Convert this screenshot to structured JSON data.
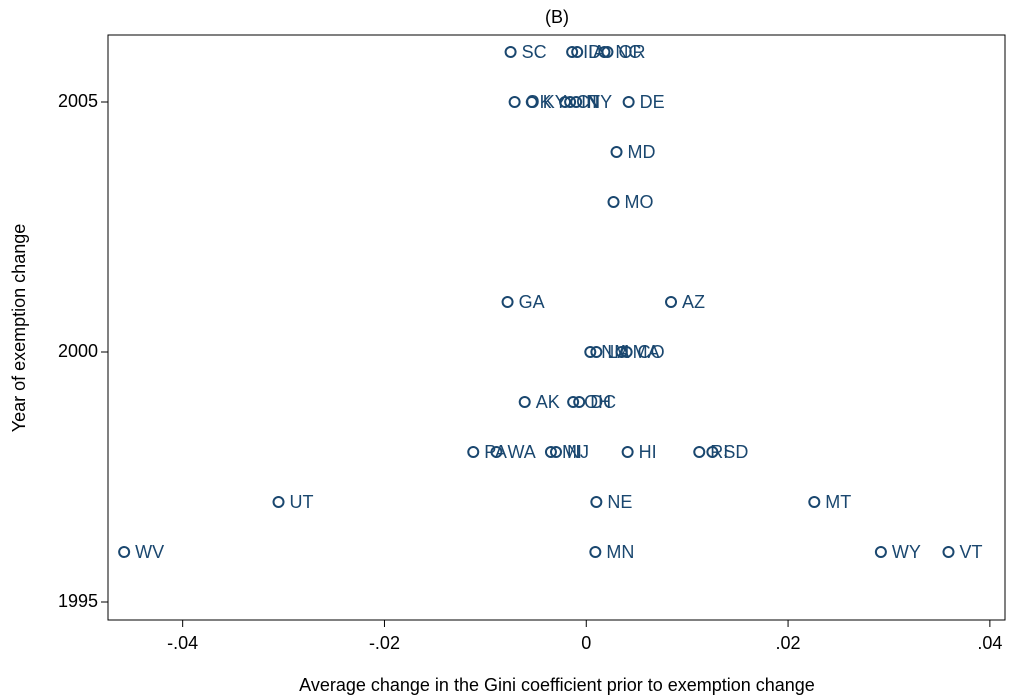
{
  "chart_data": {
    "type": "scatter",
    "title": "(B)",
    "x_label": "Average change in the Gini coefficient prior to exemption change",
    "y_label": "Year of exemption change",
    "color": "#1a476f",
    "labels": [
      "SC",
      "ID",
      "IA",
      "NC",
      "OR",
      "OK",
      "KY",
      "CT",
      "IN",
      "NY",
      "DE",
      "MD",
      "MO",
      "GA",
      "AZ",
      "NM",
      "LA",
      "MA",
      "CO",
      "AK",
      "OH",
      "DC",
      "PA",
      "WA",
      "MI",
      "NJ",
      "HI",
      "RI",
      "SD",
      "UT",
      "NE",
      "MT",
      "WV",
      "MN",
      "WY",
      "VT"
    ],
    "x": [
      -0.0075,
      -0.0014,
      -0.0009,
      0.0018,
      0.0021,
      -0.0071,
      -0.0054,
      -0.0021,
      -0.0016,
      -0.001,
      0.0042,
      0.003,
      0.0027,
      -0.0078,
      0.0084,
      0.0004,
      0.001,
      0.0035,
      0.004,
      -0.0061,
      -0.0013,
      -0.0007,
      -0.0112,
      -0.0089,
      -0.0035,
      -0.003,
      0.0041,
      0.0112,
      0.0125,
      -0.0305,
      0.001,
      0.0226,
      -0.0458,
      0.0009,
      0.0292,
      0.0359
    ],
    "y": [
      2006,
      2006,
      2006,
      2006,
      2006,
      2005,
      2005,
      2005,
      2005,
      2005,
      2005,
      2004,
      2003,
      2001,
      2001,
      2000,
      2000,
      2000,
      2000,
      1999,
      1999,
      1999,
      1998,
      1998,
      1998,
      1998,
      1998,
      1998,
      1998,
      1997,
      1997,
      1997,
      1996,
      1996,
      1996,
      1996
    ],
    "xlim": [
      -0.0474,
      0.0415
    ],
    "ylim": [
      1994.64,
      2006.34
    ],
    "xticks": [
      {
        "value": -0.04,
        "label": "-.04"
      },
      {
        "value": -0.02,
        "label": "-.02"
      },
      {
        "value": 0,
        "label": "0"
      },
      {
        "value": 0.02,
        "label": ".02"
      },
      {
        "value": 0.04,
        "label": ".04"
      }
    ],
    "yticks": [
      1995,
      2000,
      2005
    ]
  }
}
